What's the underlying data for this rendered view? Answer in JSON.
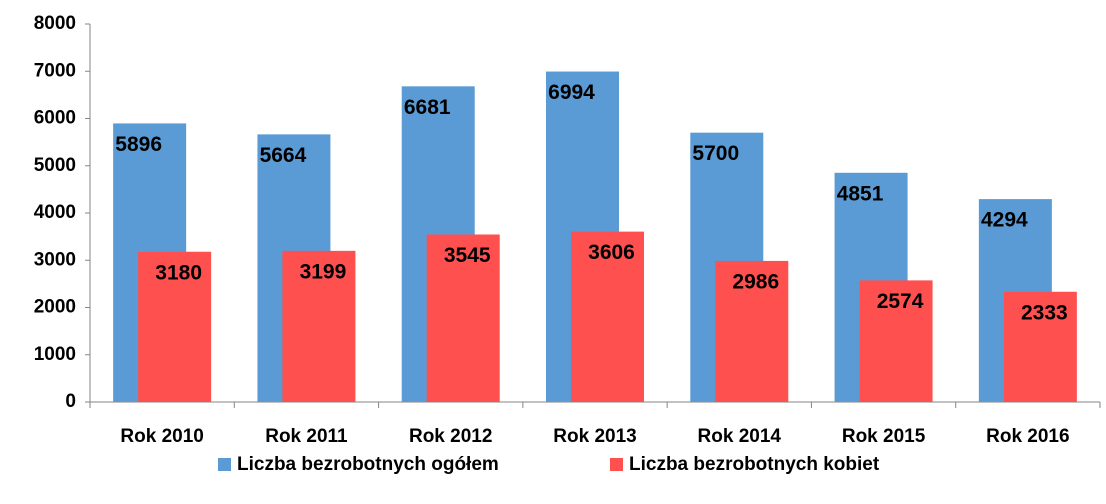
{
  "chart_data": {
    "type": "bar",
    "categories": [
      "Rok 2010",
      "Rok 2011",
      "Rok 2012",
      "Rok 2013",
      "Rok 2014",
      "Rok 2015",
      "Rok 2016"
    ],
    "series": [
      {
        "name": "Liczba bezrobotnych ogółem",
        "color": "#5b9bd5",
        "values": [
          5896,
          5664,
          6681,
          6994,
          5700,
          4851,
          4294
        ]
      },
      {
        "name": "Liczba bezrobotnych kobiet",
        "color": "#ff5050",
        "values": [
          3180,
          3199,
          3545,
          3606,
          2986,
          2574,
          2333
        ]
      }
    ],
    "ylim": [
      0,
      8000
    ],
    "yticks": [
      0,
      1000,
      2000,
      3000,
      4000,
      5000,
      6000,
      7000,
      8000
    ],
    "legend": "bottom"
  }
}
